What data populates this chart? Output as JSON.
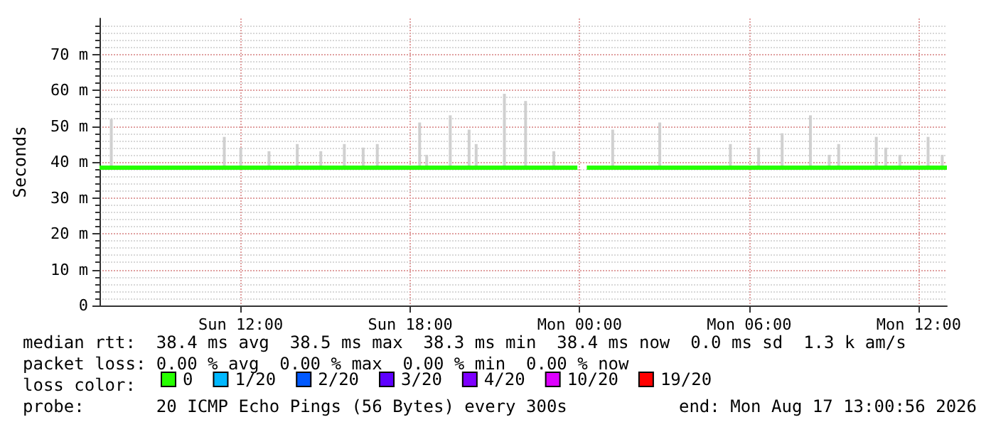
{
  "chart_data": {
    "type": "line",
    "ylabel": "Seconds",
    "xlim": [
      "2026-08-16T07:00",
      "2026-08-17T13:00"
    ],
    "xticks": [
      {
        "value": "2026-08-16T12:00",
        "label": "Sun 12:00"
      },
      {
        "value": "2026-08-16T18:00",
        "label": "Sun 18:00"
      },
      {
        "value": "2026-08-17T00:00",
        "label": "Mon 00:00"
      },
      {
        "value": "2026-08-17T06:00",
        "label": "Mon 06:00"
      },
      {
        "value": "2026-08-17T12:00",
        "label": "Mon 12:00"
      }
    ],
    "ylim": [
      0,
      80
    ],
    "yticks": [
      0,
      {
        "value": 10,
        "label": "10 m"
      },
      {
        "value": 20,
        "label": "20 m"
      },
      {
        "value": 30,
        "label": "30 m"
      },
      {
        "value": 40,
        "label": "40 m"
      },
      {
        "value": 50,
        "label": "50 m"
      },
      {
        "value": 60,
        "label": "60 m"
      },
      {
        "value": 70,
        "label": "70 m"
      }
    ],
    "grid": true,
    "legend": "bottom",
    "legend_title": "loss color:",
    "series": [
      {
        "type": "bar",
        "color": "#d0d0d0",
        "x": [
          "2026-08-16T07:25",
          "2026-08-16T11:25",
          "2026-08-16T12:00",
          "2026-08-16T13:00",
          "2026-08-16T14:00",
          "2026-08-16T14:50",
          "2026-08-16T15:40",
          "2026-08-16T16:20",
          "2026-08-16T16:50",
          "2026-08-16T18:20",
          "2026-08-16T18:35",
          "2026-08-16T19:25",
          "2026-08-16T20:05",
          "2026-08-16T20:20",
          "2026-08-16T21:20",
          "2026-08-16T22:05",
          "2026-08-16T23:05",
          "2026-08-17T01:10",
          "2026-08-17T02:50",
          "2026-08-17T05:20",
          "2026-08-17T06:20",
          "2026-08-17T07:10",
          "2026-08-17T08:10",
          "2026-08-17T08:50",
          "2026-08-17T09:10",
          "2026-08-17T10:30",
          "2026-08-17T10:50",
          "2026-08-17T11:20",
          "2026-08-17T12:20",
          "2026-08-17T12:50"
        ],
        "base": [
          38,
          38,
          38,
          38,
          38,
          38,
          38,
          38,
          38,
          38,
          38,
          38,
          38,
          38,
          38,
          38,
          38,
          38,
          38,
          38,
          38,
          38,
          38,
          38,
          38,
          38,
          38,
          38,
          38,
          38
        ],
        "values": [
          14,
          9,
          6,
          5,
          7,
          5,
          7,
          6,
          7,
          13,
          4,
          15,
          11,
          7,
          21,
          19,
          5,
          11,
          13,
          7,
          6,
          10,
          15,
          4,
          7,
          9,
          6,
          4,
          9,
          4
        ]
      },
      {
        "name": "0",
        "color": "#26ff00",
        "x": [
          "2026-08-16T07:00",
          "2026-08-16T15:00",
          "2026-08-16T23:55",
          "2026-08-17T00:05",
          "2026-08-17T00:15",
          "2026-08-17T06:00",
          "2026-08-17T13:00"
        ],
        "values": [
          38.4,
          38.4,
          38.4,
          null,
          38.4,
          38.4,
          38.4
        ]
      },
      {
        "name": "1/20",
        "color": "#00b8ff"
      },
      {
        "name": "2/20",
        "color": "#0059ff"
      },
      {
        "name": "3/20",
        "color": "#5e00ff"
      },
      {
        "name": "4/20",
        "color": "#7e00ff"
      },
      {
        "name": "10/20",
        "color": "#dd00ff"
      },
      {
        "name": "19/20",
        "color": "#ff0000"
      }
    ],
    "annotations": [
      "median rtt:  38.4 ms avg  38.5 ms max  38.3 ms min  38.4 ms now  0.0 ms sd  1.3 k am/s",
      "packet loss: 0.00 % avg  0.00 % max  0.00 % min  0.00 % now",
      "probe:       20 ICMP Echo Pings (56 Bytes) every 300s",
      "end: Mon Aug 17 13:00:56 2026"
    ]
  }
}
